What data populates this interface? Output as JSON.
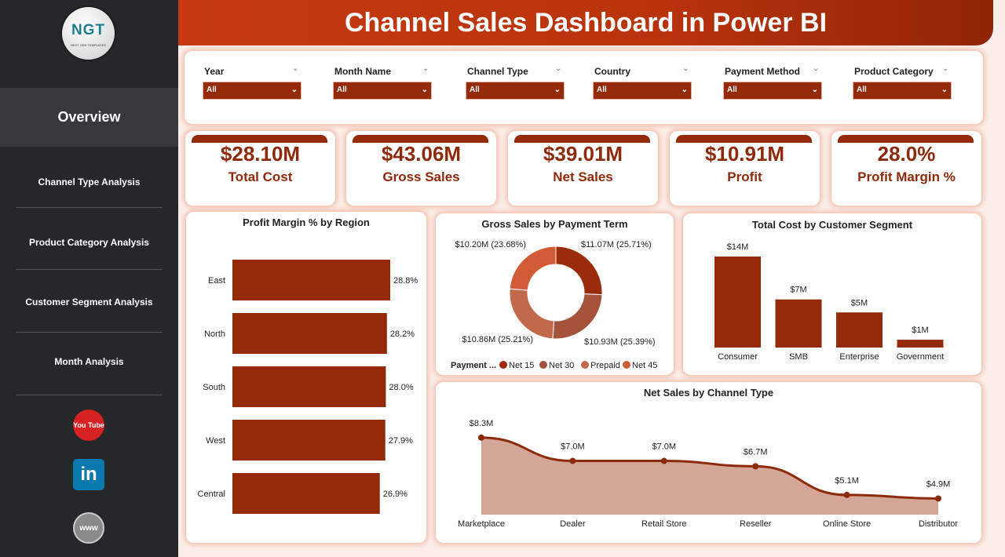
{
  "header": {
    "title": "Channel Sales Dashboard in Power BI"
  },
  "sidebar": {
    "logo_text": "NGT",
    "logo_sub": "NEXT GEN TEMPLATES",
    "active": "Overview",
    "items": [
      "Channel Type Analysis",
      "Product Category Analysis",
      "Customer Segment Analysis",
      "Month Analysis"
    ],
    "social": [
      {
        "icon": "youtube-icon",
        "label": "You Tube"
      },
      {
        "icon": "linkedin-icon",
        "label": "in"
      },
      {
        "icon": "globe-icon",
        "label": "www"
      }
    ]
  },
  "filters": [
    {
      "label": "Year",
      "value": "All"
    },
    {
      "label": "Month Name",
      "value": "All"
    },
    {
      "label": "Channel Type",
      "value": "All"
    },
    {
      "label": "Country",
      "value": "All"
    },
    {
      "label": "Payment Method",
      "value": "All"
    },
    {
      "label": "Product Category",
      "value": "All"
    }
  ],
  "kpis": [
    {
      "value": "$28.10M",
      "label": "Total Cost"
    },
    {
      "value": "$43.06M",
      "label": "Gross Sales"
    },
    {
      "value": "$39.01M",
      "label": "Net Sales"
    },
    {
      "value": "$10.91M",
      "label": "Profit"
    },
    {
      "value": "28.0%",
      "label": "Profit Margin %"
    }
  ],
  "colors": {
    "accent": "#952a0a",
    "area": "#d4a698"
  },
  "chart_data": [
    {
      "type": "bar",
      "title": "Profit Margin % by Region",
      "orientation": "horizontal",
      "categories": [
        "East",
        "North",
        "South",
        "West",
        "Central"
      ],
      "values": [
        28.8,
        28.2,
        28.0,
        27.9,
        26.9
      ],
      "labels": [
        "28.8%",
        "28.2%",
        "28.0%",
        "27.9%",
        "26.9%"
      ],
      "xlim": [
        0,
        28.8
      ]
    },
    {
      "type": "pie",
      "title": "Gross Sales by Payment Term",
      "legend_title": "Payment ...",
      "legend": "bottom",
      "categories": [
        "Net 15",
        "Net 30",
        "Prepaid",
        "Net 45"
      ],
      "values": [
        11.07,
        10.93,
        10.86,
        10.2
      ],
      "labels": [
        "$11.07M (25.71%)",
        "$10.93M (25.39%)",
        "$10.86M (25.21%)",
        "$10.20M (23.68%)"
      ],
      "colors": [
        "#9a2b0b",
        "#a4533c",
        "#c2694c",
        "#d15b36"
      ]
    },
    {
      "type": "bar",
      "title": "Total Cost by Customer Segment",
      "categories": [
        "Consumer",
        "SMB",
        "Enterprise",
        "Government"
      ],
      "values": [
        14,
        7.4,
        5.4,
        1.2
      ],
      "labels": [
        "$14M",
        "$7M",
        "$5M",
        "$1M"
      ],
      "ylim": [
        0,
        14
      ]
    },
    {
      "type": "area",
      "title": "Net Sales by Channel Type",
      "categories": [
        "Marketplace",
        "Dealer",
        "Retail Store",
        "Reseller",
        "Online Store",
        "Distributor"
      ],
      "values": [
        8.3,
        7.0,
        7.0,
        6.7,
        5.1,
        4.9
      ],
      "labels": [
        "$8.3M",
        "$7.0M",
        "$7.0M",
        "$6.7M",
        "$5.1M",
        "$4.9M"
      ],
      "ylim": [
        4,
        8.6
      ]
    }
  ]
}
